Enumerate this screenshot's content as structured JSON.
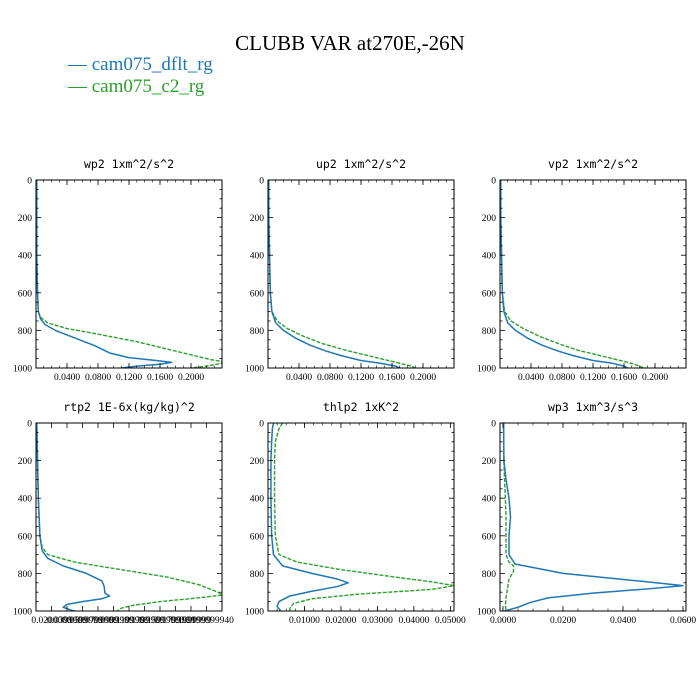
{
  "title": "CLUBB VAR at270E,-26N",
  "legend": [
    {
      "name": "cam075_dflt_rg",
      "color": "#1f77b4",
      "dash": false
    },
    {
      "name": "cam075_c2_rg",
      "color": "#2ca02c",
      "dash": true
    }
  ],
  "chart_data": [
    {
      "type": "line",
      "title": "wp2  1xm^2/s^2",
      "ylim": [
        0,
        1000
      ],
      "y_inverted": true,
      "yticks": [
        0,
        200,
        400,
        600,
        800,
        1000
      ],
      "xlim": [
        0,
        0.24
      ],
      "xticks": [
        0.04,
        0.08,
        0.12,
        0.16,
        0.2
      ],
      "xtick_labels": [
        "0.0400",
        "0.0800",
        "0.1200",
        "0.1600",
        "0.2000"
      ],
      "x_minor": 4,
      "series": [
        {
          "name": "cam075_dflt_rg",
          "points": [
            [
              0.001,
              0
            ],
            [
              0.001,
              200
            ],
            [
              0.001,
              400
            ],
            [
              0.002,
              600
            ],
            [
              0.003,
              700
            ],
            [
              0.006,
              740
            ],
            [
              0.012,
              770
            ],
            [
              0.025,
              800
            ],
            [
              0.05,
              840
            ],
            [
              0.075,
              880
            ],
            [
              0.095,
              920
            ],
            [
              0.12,
              945
            ],
            [
              0.155,
              960
            ],
            [
              0.175,
              970
            ],
            [
              0.16,
              980
            ],
            [
              0.13,
              990
            ],
            [
              0.11,
              1000
            ]
          ]
        },
        {
          "name": "cam075_c2_rg",
          "points": [
            [
              0.001,
              0
            ],
            [
              0.001,
              200
            ],
            [
              0.001,
              400
            ],
            [
              0.002,
              600
            ],
            [
              0.003,
              700
            ],
            [
              0.006,
              730
            ],
            [
              0.015,
              760
            ],
            [
              0.04,
              790
            ],
            [
              0.08,
              820
            ],
            [
              0.13,
              860
            ],
            [
              0.17,
              900
            ],
            [
              0.2,
              930
            ],
            [
              0.225,
              955
            ],
            [
              0.24,
              965
            ],
            [
              0.24,
              975
            ],
            [
              0.22,
              990
            ],
            [
              0.2,
              1000
            ]
          ]
        }
      ]
    },
    {
      "type": "line",
      "title": "up2  1xm^2/s^2",
      "ylim": [
        0,
        1000
      ],
      "y_inverted": true,
      "yticks": [
        0,
        200,
        400,
        600,
        800,
        1000
      ],
      "xlim": [
        0,
        0.24
      ],
      "xticks": [
        0.04,
        0.08,
        0.12,
        0.16,
        0.2
      ],
      "xtick_labels": [
        "0.0400",
        "0.0800",
        "0.1200",
        "0.1600",
        "0.2000"
      ],
      "x_minor": 4,
      "series": [
        {
          "name": "cam075_dflt_rg",
          "points": [
            [
              0.001,
              0
            ],
            [
              0.001,
              200
            ],
            [
              0.002,
              400
            ],
            [
              0.003,
              600
            ],
            [
              0.005,
              700
            ],
            [
              0.01,
              760
            ],
            [
              0.02,
              800
            ],
            [
              0.035,
              840
            ],
            [
              0.055,
              880
            ],
            [
              0.075,
              910
            ],
            [
              0.095,
              935
            ],
            [
              0.12,
              960
            ],
            [
              0.145,
              975
            ],
            [
              0.165,
              990
            ],
            [
              0.17,
              1000
            ]
          ]
        },
        {
          "name": "cam075_c2_rg",
          "points": [
            [
              0.001,
              0
            ],
            [
              0.001,
              200
            ],
            [
              0.002,
              400
            ],
            [
              0.003,
              600
            ],
            [
              0.005,
              700
            ],
            [
              0.012,
              750
            ],
            [
              0.025,
              790
            ],
            [
              0.045,
              830
            ],
            [
              0.07,
              870
            ],
            [
              0.1,
              905
            ],
            [
              0.125,
              930
            ],
            [
              0.15,
              955
            ],
            [
              0.17,
              975
            ],
            [
              0.185,
              990
            ],
            [
              0.19,
              1000
            ]
          ]
        }
      ]
    },
    {
      "type": "line",
      "title": "vp2  1xm^2/s^2",
      "ylim": [
        0,
        1000
      ],
      "y_inverted": true,
      "yticks": [
        0,
        200,
        400,
        600,
        800,
        1000
      ],
      "xlim": [
        0,
        0.24
      ],
      "xticks": [
        0.04,
        0.08,
        0.12,
        0.16,
        0.2
      ],
      "xtick_labels": [
        "0.0400",
        "0.0800",
        "0.1200",
        "0.1600",
        "0.2000"
      ],
      "x_minor": 4,
      "series": [
        {
          "name": "cam075_dflt_rg",
          "points": [
            [
              0.001,
              0
            ],
            [
              0.001,
              200
            ],
            [
              0.002,
              400
            ],
            [
              0.003,
              600
            ],
            [
              0.005,
              700
            ],
            [
              0.01,
              760
            ],
            [
              0.02,
              800
            ],
            [
              0.035,
              840
            ],
            [
              0.055,
              880
            ],
            [
              0.075,
              910
            ],
            [
              0.095,
              935
            ],
            [
              0.12,
              960
            ],
            [
              0.145,
              975
            ],
            [
              0.16,
              990
            ],
            [
              0.165,
              1000
            ]
          ]
        },
        {
          "name": "cam075_c2_rg",
          "points": [
            [
              0.001,
              0
            ],
            [
              0.001,
              200
            ],
            [
              0.002,
              400
            ],
            [
              0.003,
              600
            ],
            [
              0.006,
              700
            ],
            [
              0.014,
              750
            ],
            [
              0.03,
              790
            ],
            [
              0.05,
              830
            ],
            [
              0.075,
              870
            ],
            [
              0.1,
              905
            ],
            [
              0.125,
              930
            ],
            [
              0.15,
              955
            ],
            [
              0.17,
              975
            ],
            [
              0.18,
              990
            ],
            [
              0.185,
              1000
            ]
          ]
        }
      ]
    },
    {
      "type": "line",
      "title": "rtp2  1E-6x(kg/kg)^2",
      "ylim": [
        0,
        1000
      ],
      "y_inverted": true,
      "yticks": [
        0,
        200,
        400,
        600,
        800,
        1000
      ],
      "xlim": [
        0,
        0.024
      ],
      "xticks": [
        0.002,
        0.004,
        0.006,
        0.008,
        0.01,
        0.012,
        0.014,
        0.016,
        0.018,
        0.02,
        0.022
      ],
      "xtick_labels": [
        "0.0200000",
        "0.0399999",
        "0.0599999",
        "0.0799999",
        "0.0999999",
        "0.1199999",
        "0.1399999",
        "0.1599999",
        "0.1799999",
        "0.1999999",
        "0.2199999940"
      ],
      "x_minor": 0,
      "series": [
        {
          "name": "cam075_dflt_rg",
          "points": [
            [
              0.0001,
              0
            ],
            [
              0.0002,
              200
            ],
            [
              0.0003,
              400
            ],
            [
              0.0005,
              600
            ],
            [
              0.0008,
              680
            ],
            [
              0.0015,
              720
            ],
            [
              0.0035,
              760
            ],
            [
              0.0065,
              800
            ],
            [
              0.0085,
              840
            ],
            [
              0.0088,
              870
            ],
            [
              0.0089,
              905
            ],
            [
              0.0095,
              920
            ],
            [
              0.0085,
              935
            ],
            [
              0.006,
              950
            ],
            [
              0.004,
              965
            ],
            [
              0.0035,
              980
            ],
            [
              0.0045,
              995
            ],
            [
              0.005,
              1000
            ]
          ]
        },
        {
          "name": "cam075_c2_rg",
          "points": [
            [
              0.0001,
              0
            ],
            [
              0.0002,
              200
            ],
            [
              0.0003,
              400
            ],
            [
              0.0005,
              600
            ],
            [
              0.0008,
              660
            ],
            [
              0.0015,
              700
            ],
            [
              0.005,
              740
            ],
            [
              0.011,
              780
            ],
            [
              0.017,
              820
            ],
            [
              0.021,
              860
            ],
            [
              0.0235,
              900
            ],
            [
              0.024,
              915
            ],
            [
              0.021,
              930
            ],
            [
              0.016,
              950
            ],
            [
              0.0125,
              970
            ],
            [
              0.011,
              985
            ],
            [
              0.0105,
              1000
            ]
          ]
        }
      ]
    },
    {
      "type": "line",
      "title": "thlp2  1xK^2",
      "ylim": [
        0,
        1000
      ],
      "y_inverted": true,
      "yticks": [
        0,
        200,
        400,
        600,
        800,
        1000
      ],
      "xlim": [
        0,
        0.051
      ],
      "xticks": [
        0.01,
        0.02,
        0.03,
        0.04,
        0.05
      ],
      "xtick_labels": [
        "0.01000",
        "0.02000",
        "0.03000",
        "0.04000",
        "0.05000"
      ],
      "x_minor": 4,
      "series": [
        {
          "name": "cam075_dflt_rg",
          "points": [
            [
              0.0015,
              0
            ],
            [
              0.0012,
              30
            ],
            [
              0.001,
              100
            ],
            [
              0.0008,
              200
            ],
            [
              0.0008,
              400
            ],
            [
              0.001,
              600
            ],
            [
              0.0015,
              700
            ],
            [
              0.004,
              760
            ],
            [
              0.012,
              800
            ],
            [
              0.019,
              830
            ],
            [
              0.022,
              850
            ],
            [
              0.019,
              870
            ],
            [
              0.012,
              895
            ],
            [
              0.006,
              920
            ],
            [
              0.003,
              950
            ],
            [
              0.0025,
              975
            ],
            [
              0.0035,
              1000
            ]
          ]
        },
        {
          "name": "cam075_c2_rg",
          "points": [
            [
              0.004,
              0
            ],
            [
              0.003,
              30
            ],
            [
              0.002,
              100
            ],
            [
              0.0018,
              200
            ],
            [
              0.0018,
              400
            ],
            [
              0.002,
              600
            ],
            [
              0.003,
              700
            ],
            [
              0.008,
              740
            ],
            [
              0.02,
              780
            ],
            [
              0.035,
              820
            ],
            [
              0.045,
              845
            ],
            [
              0.051,
              865
            ],
            [
              0.045,
              885
            ],
            [
              0.025,
              910
            ],
            [
              0.012,
              935
            ],
            [
              0.007,
              960
            ],
            [
              0.006,
              985
            ],
            [
              0.006,
              1000
            ]
          ]
        }
      ]
    },
    {
      "type": "line",
      "title": "wp3  1xm^3/s^3",
      "ylim": [
        0,
        1000
      ],
      "y_inverted": true,
      "yticks": [
        0,
        200,
        400,
        600,
        800,
        1000
      ],
      "xlim": [
        -0.001,
        0.061
      ],
      "xticks": [
        0,
        0.02,
        0.04,
        0.06
      ],
      "xtick_labels": [
        "0.0000",
        "0.0200",
        "0.0400",
        "0.0600"
      ],
      "x_minor": 4,
      "series": [
        {
          "name": "cam075_dflt_rg",
          "points": [
            [
              0.0002,
              0
            ],
            [
              0.0003,
              200
            ],
            [
              0.001,
              300
            ],
            [
              0.002,
              400
            ],
            [
              0.0025,
              500
            ],
            [
              0.002,
              600
            ],
            [
              0.002,
              700
            ],
            [
              0.004,
              750
            ],
            [
              0.02,
              800
            ],
            [
              0.045,
              840
            ],
            [
              0.06,
              865
            ],
            [
              0.05,
              880
            ],
            [
              0.03,
              905
            ],
            [
              0.015,
              930
            ],
            [
              0.009,
              955
            ],
            [
              0.005,
              980
            ],
            [
              0.0005,
              1000
            ]
          ]
        },
        {
          "name": "cam075_c2_rg",
          "points": [
            [
              0.0002,
              0
            ],
            [
              0.0003,
              200
            ],
            [
              0.0005,
              300
            ],
            [
              0.0008,
              400
            ],
            [
              0.001,
              500
            ],
            [
              0.001,
              600
            ],
            [
              0.001,
              700
            ],
            [
              0.002,
              740
            ],
            [
              0.0035,
              760
            ],
            [
              0.0035,
              790
            ],
            [
              0.002,
              830
            ],
            [
              0.0015,
              880
            ],
            [
              0.001,
              930
            ],
            [
              0.0008,
              970
            ],
            [
              0.001,
              1000
            ]
          ]
        }
      ]
    }
  ]
}
